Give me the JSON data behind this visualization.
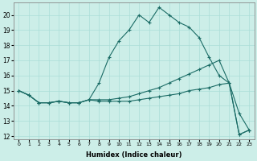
{
  "xlabel": "Humidex (Indice chaleur)",
  "bg_color": "#cceee8",
  "grid_color": "#aaddd8",
  "line_color": "#1a6b65",
  "xlim": [
    -0.5,
    23.5
  ],
  "ylim": [
    11.8,
    20.8
  ],
  "yticks": [
    12,
    13,
    14,
    15,
    16,
    17,
    18,
    19,
    20
  ],
  "xticks": [
    0,
    1,
    2,
    3,
    4,
    5,
    6,
    7,
    8,
    9,
    10,
    11,
    12,
    13,
    14,
    15,
    16,
    17,
    18,
    19,
    20,
    21,
    22,
    23
  ],
  "lines": [
    {
      "x": [
        0,
        1,
        2,
        3,
        4,
        5,
        6,
        7,
        8,
        9,
        10,
        11,
        12,
        13,
        14,
        15,
        16,
        17,
        18,
        19,
        20,
        21,
        22,
        23
      ],
      "y": [
        15.0,
        14.7,
        14.2,
        14.2,
        14.3,
        14.2,
        14.2,
        14.4,
        15.5,
        17.2,
        18.3,
        19.0,
        20.0,
        19.5,
        20.5,
        20.0,
        19.5,
        19.2,
        18.5,
        17.2,
        16.0,
        15.5,
        13.5,
        12.4
      ]
    },
    {
      "x": [
        0,
        1,
        2,
        3,
        4,
        5,
        6,
        7,
        8,
        9,
        10,
        11,
        12,
        13,
        14,
        15,
        16,
        17,
        18,
        19,
        20,
        21,
        22,
        23
      ],
      "y": [
        15.0,
        14.7,
        14.2,
        14.2,
        14.3,
        14.2,
        14.2,
        14.4,
        14.4,
        14.4,
        14.5,
        14.6,
        14.8,
        15.0,
        15.2,
        15.5,
        15.8,
        16.1,
        16.4,
        16.7,
        17.0,
        15.5,
        12.1,
        12.4
      ]
    },
    {
      "x": [
        0,
        1,
        2,
        3,
        4,
        5,
        6,
        7,
        8,
        9,
        10,
        11,
        12,
        13,
        14,
        15,
        16,
        17,
        18,
        19,
        20,
        21,
        22,
        23
      ],
      "y": [
        15.0,
        14.7,
        14.2,
        14.2,
        14.3,
        14.2,
        14.2,
        14.4,
        14.3,
        14.3,
        14.3,
        14.3,
        14.4,
        14.5,
        14.6,
        14.7,
        14.8,
        15.0,
        15.1,
        15.2,
        15.4,
        15.5,
        12.1,
        12.4
      ]
    }
  ]
}
